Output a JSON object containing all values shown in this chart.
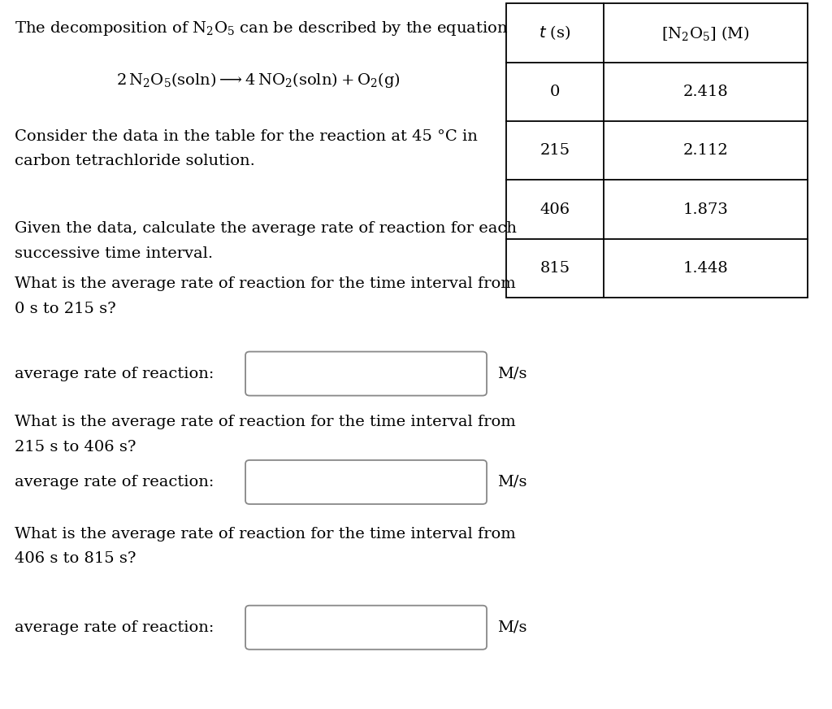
{
  "background_color": "#ffffff",
  "text_color": "#000000",
  "box_edge_color": "#888888",
  "table_border_color": "#000000",
  "font_size_main": 14,
  "font_size_eq": 14,
  "font_size_table": 14,
  "line1": "The decomposition of $\\mathregular{N_2O_5}$ can be described by the equation",
  "equation": "$\\mathregular{2\\,N_2O_5(soln) \\longrightarrow 4\\,NO_2(soln) + O_2(g)}$",
  "consider_line1": "Consider the data in the table for the reaction at 45 °C in",
  "consider_line2": "carbon tetrachloride solution.",
  "given_line1": "Given the data, calculate the average rate of reaction for each",
  "given_line2": "successive time interval.",
  "q1_line1": "What is the average rate of reaction for the time interval from",
  "q1_line2": "0 s to 215 s?",
  "q2_line1": "What is the average rate of reaction for the time interval from",
  "q2_line2": "215 s to 406 s?",
  "q3_line1": "What is the average rate of reaction for the time interval from",
  "q3_line2": "406 s to 815 s?",
  "label_reaction": "average rate of reaction:",
  "unit": "M/s",
  "table_times": [
    "0",
    "215",
    "406",
    "815"
  ],
  "table_concs": [
    "2.418",
    "2.112",
    "1.873",
    "1.448"
  ],
  "col1_header": "$t$ (s)",
  "col2_header": "$\\mathregular{[N_2O_5]}$ (M)"
}
